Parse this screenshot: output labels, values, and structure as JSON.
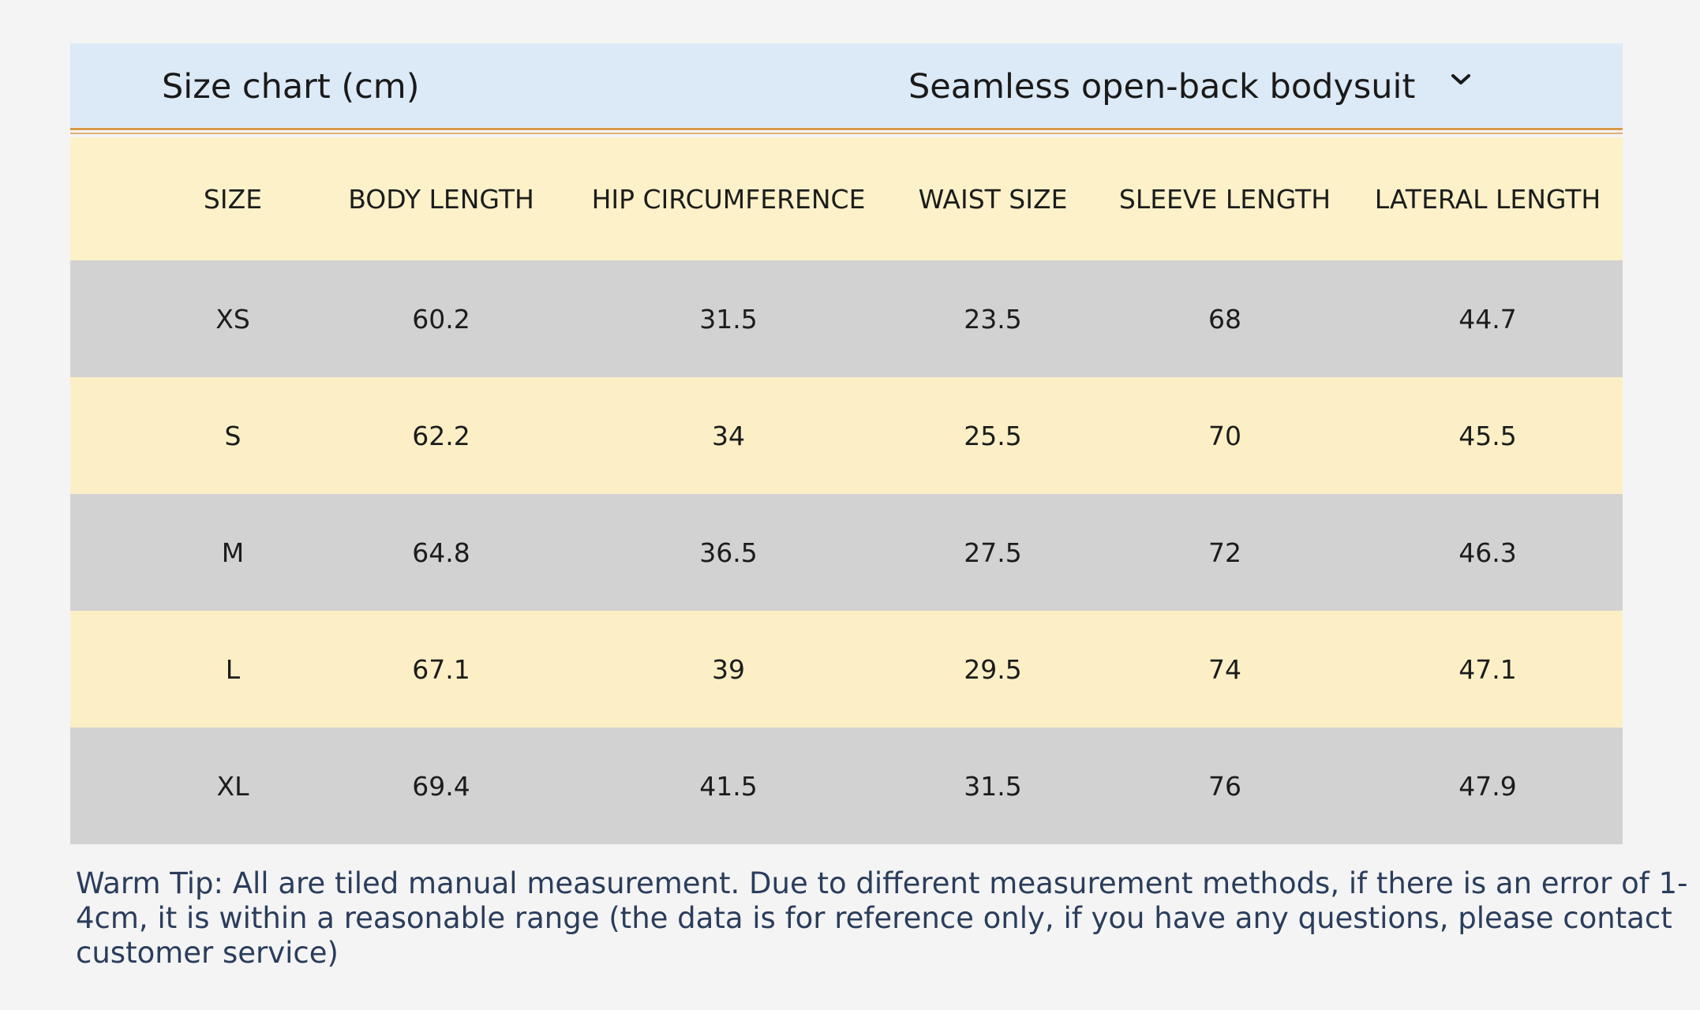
{
  "header": {
    "title": "Size chart  (cm)",
    "product": "Seamless open-back bodysuit"
  },
  "table": {
    "columns": [
      "SIZE",
      "BODY LENGTH",
      "HIP CIRCUMFERENCE",
      "WAIST SIZE",
      "SLEEVE LENGTH",
      "LATERAL LENGTH"
    ],
    "rows": [
      [
        "XS",
        "60.2",
        "31.5",
        "23.5",
        "68",
        "44.7"
      ],
      [
        "S",
        "62.2",
        "34",
        "25.5",
        "70",
        "45.5"
      ],
      [
        "M",
        "64.8",
        "36.5",
        "27.5",
        "72",
        "46.3"
      ],
      [
        "L",
        "67.1",
        "39",
        "29.5",
        "74",
        "47.1"
      ],
      [
        "XL",
        "69.4",
        "41.5",
        "31.5",
        "76",
        "47.9"
      ]
    ]
  },
  "tip": "Warm Tip: All are tiled manual measurement. Due to different measurement methods, if there is an error of 1-4cm, it is within a reasonable range (the data is for reference only, if you have any questions, please contact customer service)"
}
